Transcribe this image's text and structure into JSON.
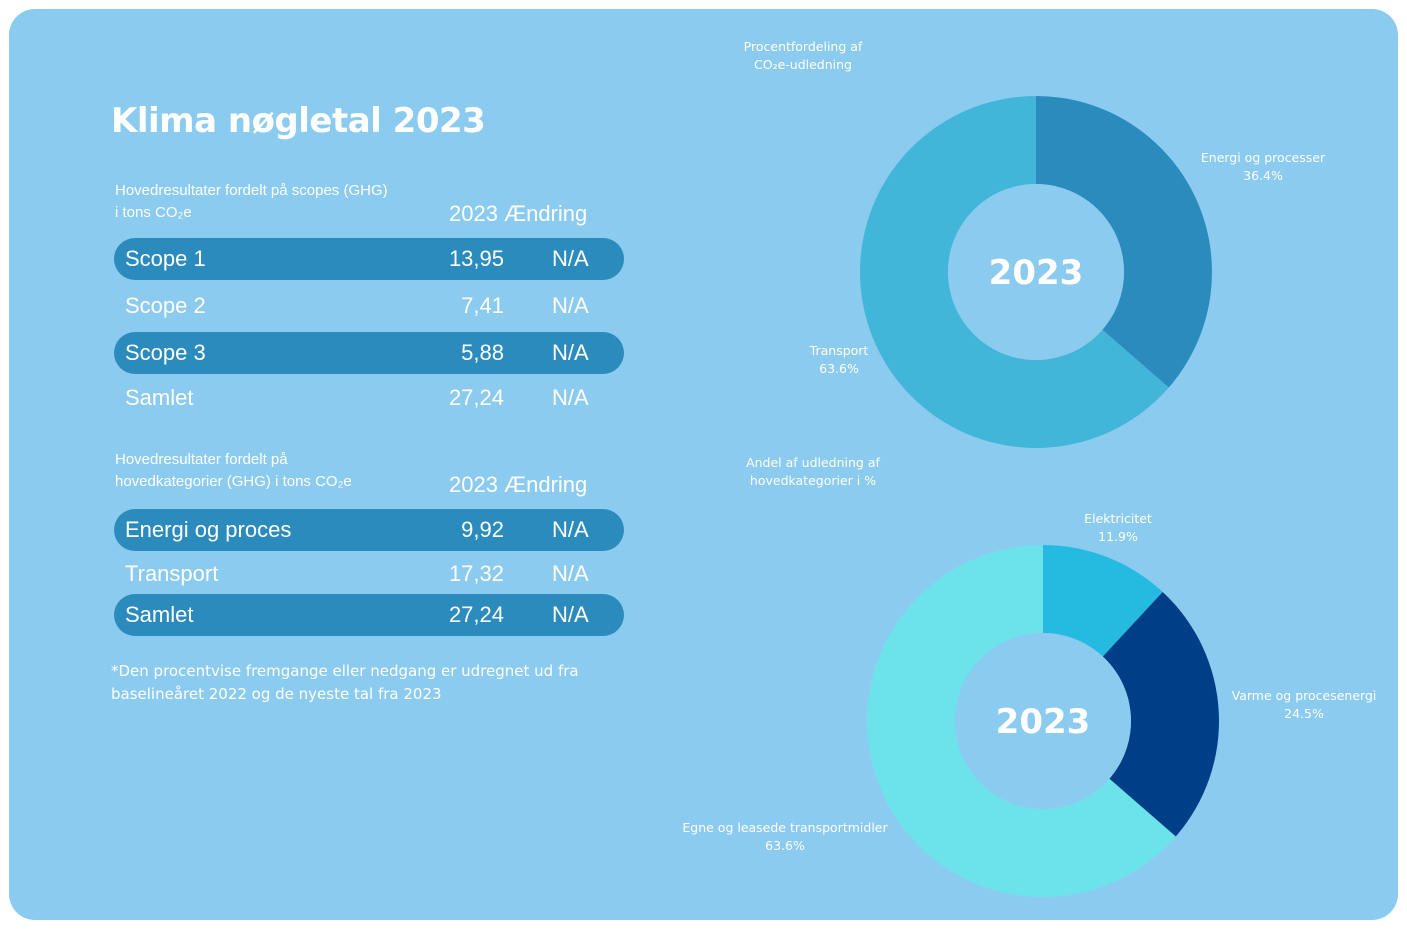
{
  "title": "Klima nøgletal 2023",
  "scopes_table": {
    "label_line1": "Hovedresultater fordelt på scopes (GHG)",
    "label_line2": "i tons CO₂e",
    "col_year": "2023",
    "col_change": "Ændring",
    "rows": [
      {
        "label": "Scope 1",
        "value": "13,95",
        "change": "N/A"
      },
      {
        "label": "Scope 2",
        "value": "7,41",
        "change": "N/A"
      },
      {
        "label": "Scope 3",
        "value": "5,88",
        "change": "N/A"
      },
      {
        "label": "Samlet",
        "value": "27,24",
        "change": "N/A"
      }
    ]
  },
  "categories_table": {
    "label_line1": "Hovedresultater fordelt på",
    "label_line2": "hovedkategorier (GHG) i tons CO₂e",
    "col_year": "2023",
    "col_change": "Ændring",
    "rows": [
      {
        "label": "Energi og proces",
        "value": "9,92",
        "change": "N/A"
      },
      {
        "label": "Transport",
        "value": "17,32",
        "change": "N/A"
      },
      {
        "label": "Samlet",
        "value": "27,24",
        "change": "N/A"
      }
    ]
  },
  "footnote_line1": "*Den procentvise fremgange eller nedgang er udregnet ud fra",
  "footnote_line2": "baselineåret 2022 og de nyeste tal fra 2023",
  "chart_data": [
    {
      "type": "pie",
      "title_line1": "Procentfordeling af",
      "title_line2": "CO₂e-udledning",
      "center_label": "2023",
      "slices": [
        {
          "label": "Energi og processer",
          "percent_label": "36.4%",
          "value": 36.4,
          "color": "#2b8bbd"
        },
        {
          "label": "Transport",
          "percent_label": "63.6%",
          "value": 63.6,
          "color": "#42b6d9"
        }
      ]
    },
    {
      "type": "pie",
      "title_line1": "Andel af udledning af",
      "title_line2": "hovedkategorier i %",
      "center_label": "2023",
      "slices": [
        {
          "label": "Elektricitet",
          "percent_label": "11.9%",
          "value": 11.9,
          "color": "#25bbe0"
        },
        {
          "label": "Varme og procesenergi",
          "percent_label": "24.5%",
          "value": 24.5,
          "color": "#003f88"
        },
        {
          "label": "Egne og leasede transportmidler",
          "percent_label": "63.6%",
          "value": 63.6,
          "color": "#6ce3ea"
        }
      ]
    }
  ],
  "colors": {
    "background": "#8ccbf0",
    "row_shade": "#2b8bbd",
    "text": "#ffffff"
  }
}
